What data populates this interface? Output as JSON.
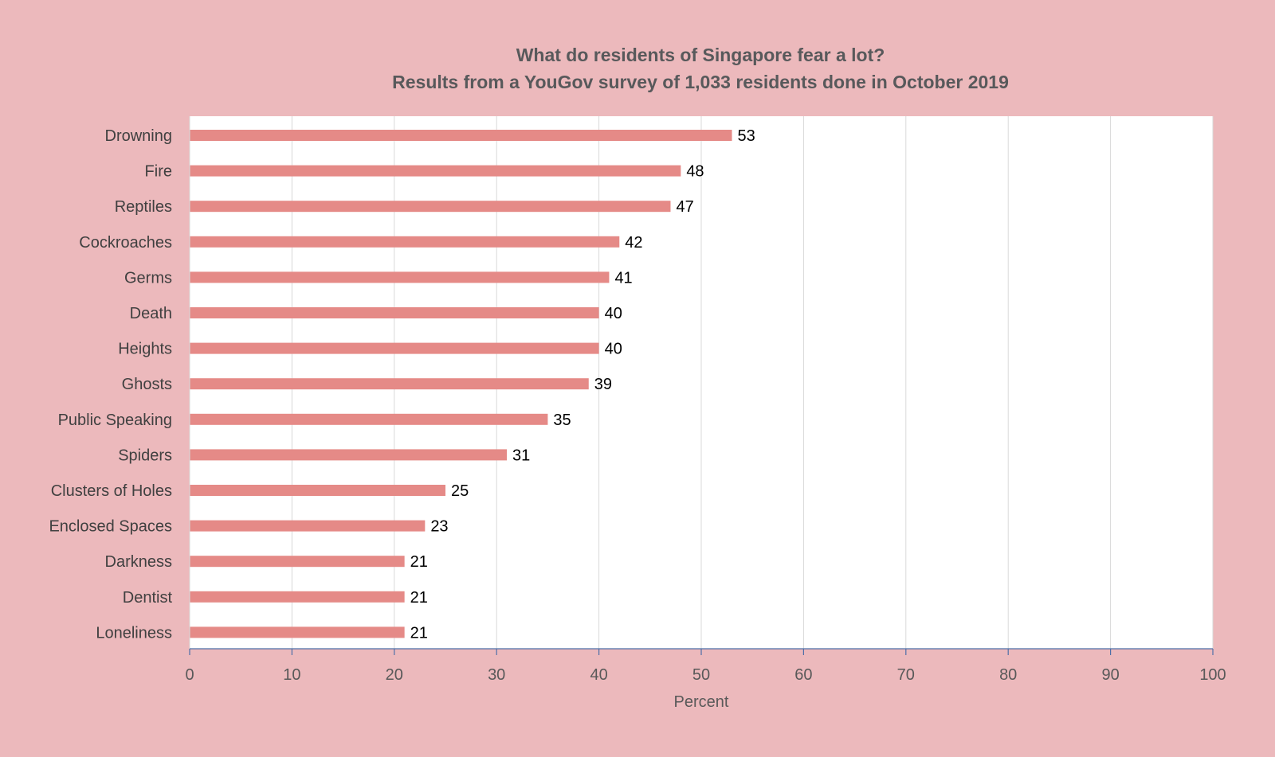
{
  "chart_data": {
    "type": "bar",
    "orientation": "horizontal",
    "title": "What do residents of Singapore fear a lot?",
    "subtitle": "Results from a YouGov survey of 1,033 residents done in October 2019",
    "categories": [
      "Drowning",
      "Fire",
      "Reptiles",
      "Cockroaches",
      "Germs",
      "Death",
      "Heights",
      "Ghosts",
      "Public Speaking",
      "Spiders",
      "Clusters of Holes",
      "Enclosed Spaces",
      "Darkness",
      "Dentist",
      "Loneliness"
    ],
    "values": [
      53,
      48,
      47,
      42,
      41,
      40,
      40,
      39,
      35,
      31,
      25,
      23,
      21,
      21,
      21
    ],
    "xlabel": "Percent",
    "ylabel": "",
    "xlim": [
      0,
      100
    ],
    "xticks": [
      0,
      10,
      20,
      30,
      40,
      50,
      60,
      70,
      80,
      90,
      100
    ],
    "grid": true,
    "data_labels": true,
    "colors": {
      "background": "#ecb9bc",
      "plot_area": "#ffffff",
      "bar": "#e58a87",
      "gridline": "#d9d9d9",
      "axis": "#4e6fa8",
      "title_text": "#58595b",
      "label_text": "#404040"
    }
  }
}
